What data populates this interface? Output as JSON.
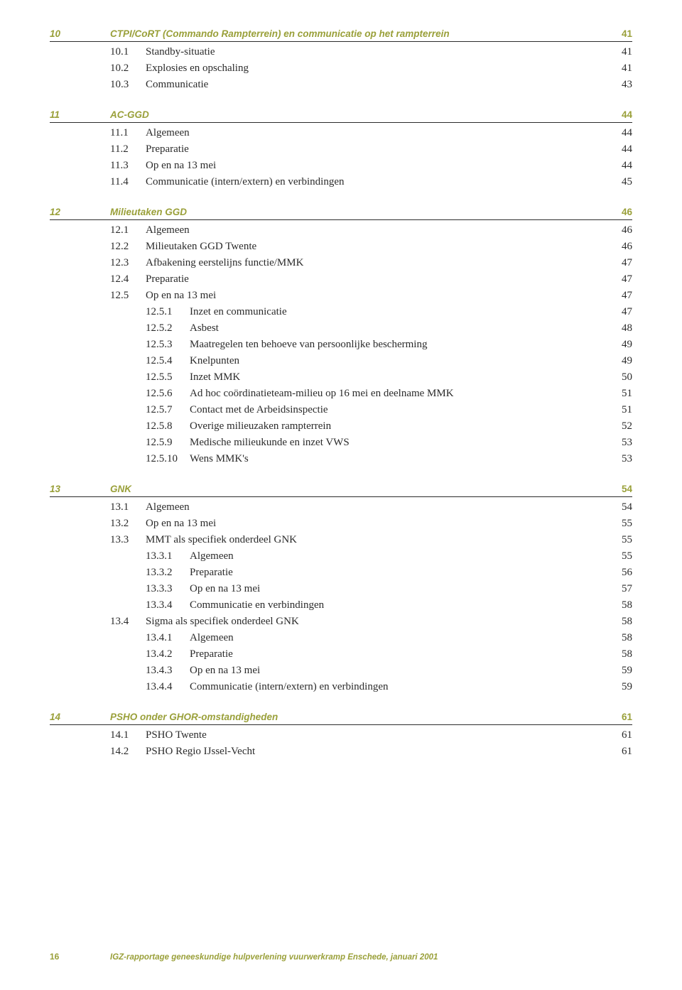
{
  "colors": {
    "accent": "#9aa03a",
    "text": "#2b2b2b",
    "footer": "#9aa03a",
    "rule": "#2b2b2b"
  },
  "sections": [
    {
      "num": "10",
      "title": "CTPI/CoRT (Commando Rampterrein) en communicatie op het rampterrein",
      "page": "41",
      "accent": true,
      "entries": [
        {
          "lvl": 0,
          "num": "10.1",
          "title": "Standby-situatie",
          "page": "41"
        },
        {
          "lvl": 0,
          "num": "10.2",
          "title": "Explosies en opschaling",
          "page": "41"
        },
        {
          "lvl": 0,
          "num": "10.3",
          "title": "Communicatie",
          "page": "43"
        }
      ]
    },
    {
      "num": "11",
      "title": "AC-GGD",
      "page": "44",
      "accent": true,
      "entries": [
        {
          "lvl": 0,
          "num": "11.1",
          "title": "Algemeen",
          "page": "44"
        },
        {
          "lvl": 0,
          "num": "11.2",
          "title": "Preparatie",
          "page": "44"
        },
        {
          "lvl": 0,
          "num": "11.3",
          "title": "Op en na 13 mei",
          "page": "44"
        },
        {
          "lvl": 0,
          "num": "11.4",
          "title": "Communicatie (intern/extern) en verbindingen",
          "page": "45"
        }
      ]
    },
    {
      "num": "12",
      "title": "Milieutaken GGD",
      "page": "46",
      "accent": true,
      "entries": [
        {
          "lvl": 0,
          "num": "12.1",
          "title": "Algemeen",
          "page": "46"
        },
        {
          "lvl": 0,
          "num": "12.2",
          "title": "Milieutaken GGD Twente",
          "page": "46"
        },
        {
          "lvl": 0,
          "num": "12.3",
          "title": "Afbakening eerstelijns functie/MMK",
          "page": "47"
        },
        {
          "lvl": 0,
          "num": "12.4",
          "title": "Preparatie",
          "page": "47"
        },
        {
          "lvl": 0,
          "num": "12.5",
          "title": "Op en na 13 mei",
          "page": "47"
        },
        {
          "lvl": 1,
          "num": "12.5.1",
          "title": "Inzet en communicatie",
          "page": "47"
        },
        {
          "lvl": 1,
          "num": "12.5.2",
          "title": "Asbest",
          "page": "48"
        },
        {
          "lvl": 1,
          "num": "12.5.3",
          "title": "Maatregelen ten behoeve van persoonlijke bescherming",
          "page": "49"
        },
        {
          "lvl": 1,
          "num": "12.5.4",
          "title": "Knelpunten",
          "page": "49"
        },
        {
          "lvl": 1,
          "num": "12.5.5",
          "title": "Inzet MMK",
          "page": "50"
        },
        {
          "lvl": 1,
          "num": "12.5.6",
          "title": "Ad hoc coördinatieteam-milieu op 16 mei en deelname MMK",
          "page": "51"
        },
        {
          "lvl": 1,
          "num": "12.5.7",
          "title": "Contact met de Arbeidsinspectie",
          "page": "51"
        },
        {
          "lvl": 1,
          "num": "12.5.8",
          "title": "Overige milieuzaken rampterrein",
          "page": "52"
        },
        {
          "lvl": 1,
          "num": "12.5.9",
          "title": "Medische milieukunde en inzet VWS",
          "page": "53"
        },
        {
          "lvl": 1,
          "num": "12.5.10",
          "title": "Wens MMK's",
          "page": "53"
        }
      ]
    },
    {
      "num": "13",
      "title": "GNK",
      "page": "54",
      "accent": true,
      "entries": [
        {
          "lvl": 0,
          "num": "13.1",
          "title": "Algemeen",
          "page": "54"
        },
        {
          "lvl": 0,
          "num": "13.2",
          "title": "Op en na 13 mei",
          "page": "55"
        },
        {
          "lvl": 0,
          "num": "13.3",
          "title": "MMT als specifiek onderdeel GNK",
          "page": "55"
        },
        {
          "lvl": 1,
          "num": "13.3.1",
          "title": "Algemeen",
          "page": "55"
        },
        {
          "lvl": 1,
          "num": "13.3.2",
          "title": "Preparatie",
          "page": "56"
        },
        {
          "lvl": 1,
          "num": "13.3.3",
          "title": "Op en na 13 mei",
          "page": "57"
        },
        {
          "lvl": 1,
          "num": "13.3.4",
          "title": "Communicatie en verbindingen",
          "page": "58"
        },
        {
          "lvl": 0,
          "num": "13.4",
          "title": "Sigma als specifiek onderdeel GNK",
          "page": "58"
        },
        {
          "lvl": 1,
          "num": "13.4.1",
          "title": "Algemeen",
          "page": "58"
        },
        {
          "lvl": 1,
          "num": "13.4.2",
          "title": "Preparatie",
          "page": "58"
        },
        {
          "lvl": 1,
          "num": "13.4.3",
          "title": "Op en na 13 mei",
          "page": "59"
        },
        {
          "lvl": 1,
          "num": "13.4.4",
          "title": "Communicatie (intern/extern) en verbindingen",
          "page": "59"
        }
      ]
    },
    {
      "num": "14",
      "title": "PSHO onder GHOR-omstandigheden",
      "page": "61",
      "accent": true,
      "entries": [
        {
          "lvl": 0,
          "num": "14.1",
          "title": "PSHO Twente",
          "page": "61"
        },
        {
          "lvl": 0,
          "num": "14.2",
          "title": "PSHO Regio IJssel-Vecht",
          "page": "61"
        }
      ]
    }
  ],
  "footer": {
    "pagenum": "16",
    "text": "IGZ-rapportage geneeskundige hulpverlening vuurwerkramp Enschede, januari 2001"
  }
}
